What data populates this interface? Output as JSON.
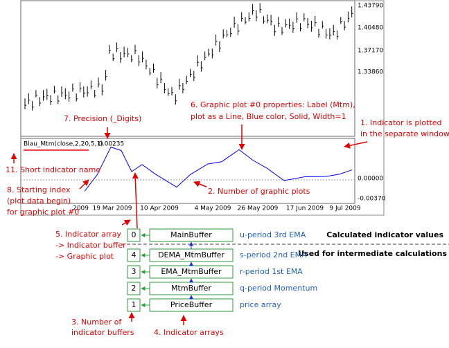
{
  "price_panel": {
    "yticks": [
      "1.43790",
      "1.40480",
      "1.37170",
      "1.33860"
    ]
  },
  "indicator_panel": {
    "short_name": "Blau_Mtm(close,2,20,5,1)",
    "value": "0.00235",
    "yticks": [
      "0.00000",
      "-0.00370"
    ],
    "xticks": [
      "2009",
      "19 Mar 2009",
      "10 Apr 2009",
      "4 May 2009",
      "26 May 2009",
      "17 Jun 2009",
      "9 Jul 2009"
    ]
  },
  "annotations": {
    "precision": "7. Precision (_Digits)",
    "plot_props": [
      "6. Graphic plot #0 properties: Label (Mtm),",
      "plot as a Line, Blue color, Solid, Width=1"
    ],
    "separate_window": [
      "1. Indicator is plotted",
      "in the separate window"
    ],
    "short_name": "11. Short indicator name",
    "starting_index": [
      "8. Starting index",
      "(plot data begin)",
      "for graphic plot #0"
    ],
    "graphic_plots": "2. Number of graphic plots",
    "indicator_array": [
      "5. Indicator array",
      "-> Indicator buffer",
      "-> Graphic plot"
    ],
    "num_buffers": [
      "3. Number of",
      "indicator buffers"
    ],
    "indicator_arrays": "4. Indicator arrays"
  },
  "sections": {
    "calculated": "Calculated indicator values",
    "intermediate": "Used for intermediate calculations"
  },
  "buffers": [
    {
      "index": "0",
      "name": "MainBuffer",
      "description": "u-period 3rd EMA"
    },
    {
      "index": "4",
      "name": "DEMA_MtmBuffer",
      "description": "s-period 2nd EMA"
    },
    {
      "index": "3",
      "name": "EMA_MtmBuffer",
      "description": "r-period 1st EMA"
    },
    {
      "index": "2",
      "name": "MtmBuffer",
      "description": "q-period Momentum"
    },
    {
      "index": "1",
      "name": "PriceBuffer",
      "description": "price array"
    }
  ]
}
